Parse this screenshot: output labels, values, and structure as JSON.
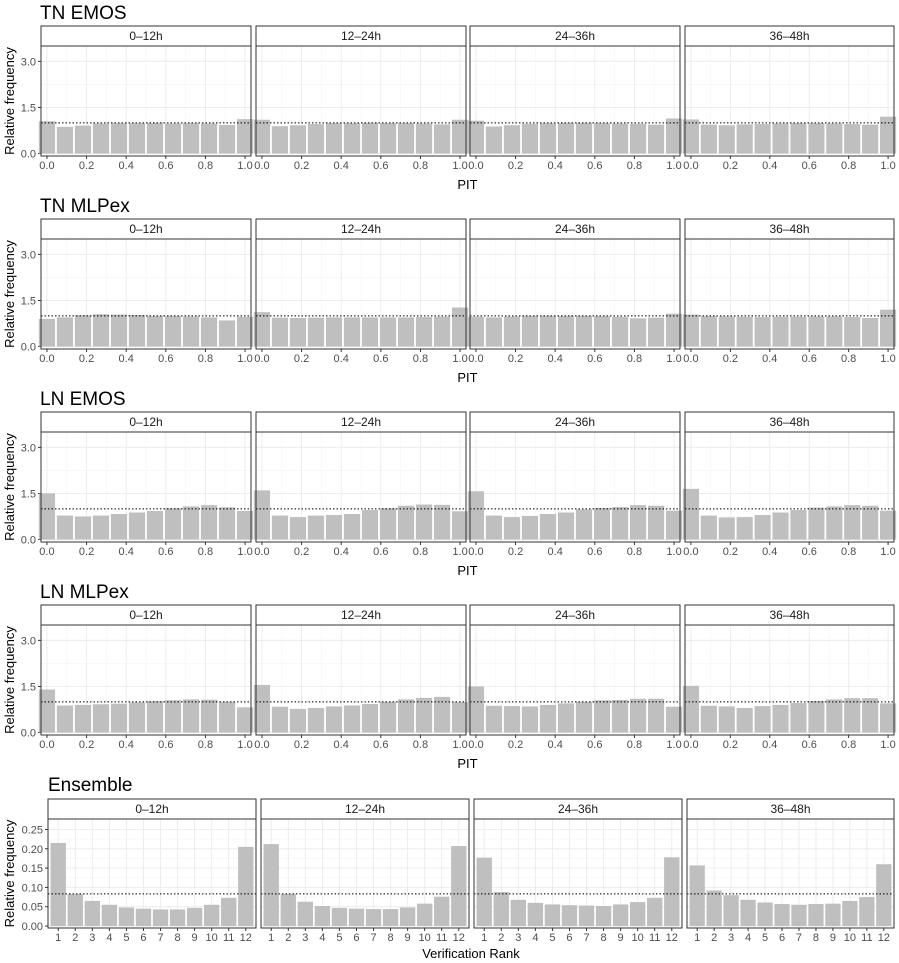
{
  "style": {
    "bar_color": "#bfbfbf",
    "panel_border": "#333333",
    "strip_fill": "#ffffff",
    "grid_major": "#ebebeb",
    "grid_minor": "#f5f5f5",
    "reference_line": "#000000"
  },
  "chart_data": [
    {
      "type": "bar",
      "title": "TN EMOS",
      "xlabel": "PIT",
      "ylabel": "Relative frequency",
      "ylim": [
        -0.08,
        3.5
      ],
      "yticks": [
        0.0,
        1.5,
        3.0
      ],
      "ytick_labels": [
        "0.0",
        "1.5",
        "3.0"
      ],
      "xlim": [
        -0.03,
        1.03
      ],
      "xticks": [
        0.0,
        0.2,
        0.4,
        0.6,
        0.8,
        1.0
      ],
      "xtick_labels": [
        "0.0",
        "0.2",
        "0.4",
        "0.6",
        "0.8",
        "1.0"
      ],
      "reference_line": 1.0,
      "facets": [
        {
          "label": "0–12h",
          "values": [
            1.05,
            0.87,
            0.91,
            0.98,
            0.99,
            0.99,
            1.0,
            0.98,
            0.99,
            0.98,
            0.93,
            1.12
          ]
        },
        {
          "label": "12–24h",
          "values": [
            1.1,
            0.89,
            0.92,
            0.96,
            0.99,
            0.99,
            1.0,
            0.99,
            0.99,
            0.98,
            0.95,
            1.1
          ]
        },
        {
          "label": "24–36h",
          "values": [
            1.07,
            0.88,
            0.92,
            0.97,
            0.99,
            1.0,
            1.0,
            0.99,
            0.98,
            0.97,
            0.94,
            1.14
          ]
        },
        {
          "label": "36–48h",
          "values": [
            1.11,
            0.94,
            0.92,
            0.95,
            0.96,
            0.98,
            0.99,
            0.99,
            0.98,
            0.96,
            0.94,
            1.2
          ]
        }
      ]
    },
    {
      "type": "bar",
      "title": "TN MLPex",
      "xlabel": "PIT",
      "ylabel": "Relative frequency",
      "ylim": [
        -0.08,
        3.5
      ],
      "yticks": [
        0.0,
        1.5,
        3.0
      ],
      "ytick_labels": [
        "0.0",
        "1.5",
        "3.0"
      ],
      "xlim": [
        -0.03,
        1.03
      ],
      "xticks": [
        0.0,
        0.2,
        0.4,
        0.6,
        0.8,
        1.0
      ],
      "xtick_labels": [
        "0.0",
        "0.2",
        "0.4",
        "0.6",
        "0.8",
        "1.0"
      ],
      "reference_line": 1.0,
      "facets": [
        {
          "label": "0–12h",
          "values": [
            0.9,
            0.95,
            1.02,
            1.05,
            1.04,
            1.03,
            1.0,
            1.0,
            0.98,
            0.95,
            0.85,
            0.97
          ]
        },
        {
          "label": "12–24h",
          "values": [
            1.12,
            0.94,
            0.93,
            0.94,
            0.95,
            0.95,
            0.95,
            0.95,
            0.95,
            0.96,
            0.97,
            1.27
          ]
        },
        {
          "label": "24–36h",
          "values": [
            0.97,
            0.95,
            0.98,
            1.0,
            1.0,
            1.0,
            1.0,
            0.99,
            0.97,
            0.92,
            0.94,
            1.07
          ]
        },
        {
          "label": "36–48h",
          "values": [
            1.04,
            0.99,
            0.98,
            0.97,
            0.96,
            0.97,
            0.97,
            0.98,
            0.98,
            0.96,
            0.93,
            1.2
          ]
        }
      ]
    },
    {
      "type": "bar",
      "title": "LN EMOS",
      "xlabel": "PIT",
      "ylabel": "Relative frequency",
      "ylim": [
        -0.08,
        3.5
      ],
      "yticks": [
        0.0,
        1.5,
        3.0
      ],
      "ytick_labels": [
        "0.0",
        "1.5",
        "3.0"
      ],
      "xlim": [
        -0.03,
        1.03
      ],
      "xticks": [
        0.0,
        0.2,
        0.4,
        0.6,
        0.8,
        1.0
      ],
      "xtick_labels": [
        "0.0",
        "0.2",
        "0.4",
        "0.6",
        "0.8",
        "1.0"
      ],
      "reference_line": 1.0,
      "facets": [
        {
          "label": "0–12h",
          "values": [
            1.5,
            0.78,
            0.75,
            0.78,
            0.83,
            0.88,
            0.93,
            1.02,
            1.08,
            1.12,
            1.05,
            0.93
          ]
        },
        {
          "label": "12–24h",
          "values": [
            1.6,
            0.78,
            0.73,
            0.78,
            0.8,
            0.83,
            0.96,
            1.02,
            1.1,
            1.14,
            1.13,
            0.92
          ]
        },
        {
          "label": "24–36h",
          "values": [
            1.57,
            0.78,
            0.73,
            0.77,
            0.83,
            0.88,
            0.98,
            1.03,
            1.06,
            1.12,
            1.1,
            0.94
          ]
        },
        {
          "label": "36–48h",
          "values": [
            1.65,
            0.78,
            0.72,
            0.73,
            0.8,
            0.88,
            0.96,
            1.04,
            1.08,
            1.12,
            1.1,
            0.94
          ]
        }
      ]
    },
    {
      "type": "bar",
      "title": "LN MLPex",
      "xlabel": "PIT",
      "ylabel": "Relative frequency",
      "ylim": [
        -0.08,
        3.5
      ],
      "yticks": [
        0.0,
        1.5,
        3.0
      ],
      "ytick_labels": [
        "0.0",
        "1.5",
        "3.0"
      ],
      "xlim": [
        -0.03,
        1.03
      ],
      "xticks": [
        0.0,
        0.2,
        0.4,
        0.6,
        0.8,
        1.0
      ],
      "xtick_labels": [
        "0.0",
        "0.2",
        "0.4",
        "0.6",
        "0.8",
        "1.0"
      ],
      "reference_line": 1.0,
      "facets": [
        {
          "label": "0–12h",
          "values": [
            1.4,
            0.88,
            0.9,
            0.92,
            0.94,
            0.98,
            1.02,
            1.05,
            1.08,
            1.07,
            1.0,
            0.82
          ]
        },
        {
          "label": "12–24h",
          "values": [
            1.55,
            0.84,
            0.77,
            0.8,
            0.85,
            0.88,
            0.93,
            1.0,
            1.08,
            1.13,
            1.16,
            0.99
          ]
        },
        {
          "label": "24–36h",
          "values": [
            1.5,
            0.87,
            0.86,
            0.85,
            0.9,
            0.95,
            1.0,
            1.05,
            1.06,
            1.1,
            1.1,
            0.84
          ]
        },
        {
          "label": "36–48h",
          "values": [
            1.52,
            0.87,
            0.85,
            0.8,
            0.86,
            0.9,
            0.96,
            1.03,
            1.08,
            1.12,
            1.12,
            0.95
          ]
        }
      ]
    },
    {
      "type": "bar",
      "title": "Ensemble",
      "xlabel": "Verification Rank",
      "ylabel": "Relative frequency",
      "ylim": [
        -0.005,
        0.277
      ],
      "yticks": [
        0.0,
        0.05,
        0.1,
        0.15,
        0.2,
        0.25
      ],
      "ytick_labels": [
        "0.00",
        "0.05",
        "0.10",
        "0.15",
        "0.20",
        "0.25"
      ],
      "categories": [
        "1",
        "2",
        "3",
        "4",
        "5",
        "6",
        "7",
        "8",
        "9",
        "10",
        "11",
        "12"
      ],
      "reference_line": 0.0833,
      "facets": [
        {
          "label": "0–12h",
          "values": [
            0.215,
            0.083,
            0.065,
            0.055,
            0.048,
            0.045,
            0.043,
            0.043,
            0.047,
            0.055,
            0.073,
            0.205
          ]
        },
        {
          "label": "12–24h",
          "values": [
            0.212,
            0.083,
            0.063,
            0.052,
            0.047,
            0.045,
            0.044,
            0.044,
            0.048,
            0.058,
            0.076,
            0.207
          ]
        },
        {
          "label": "24–36h",
          "values": [
            0.177,
            0.088,
            0.068,
            0.06,
            0.056,
            0.054,
            0.053,
            0.052,
            0.056,
            0.062,
            0.073,
            0.178
          ]
        },
        {
          "label": "36–48h",
          "values": [
            0.157,
            0.092,
            0.08,
            0.068,
            0.061,
            0.057,
            0.055,
            0.057,
            0.058,
            0.065,
            0.075,
            0.16
          ]
        }
      ]
    }
  ]
}
